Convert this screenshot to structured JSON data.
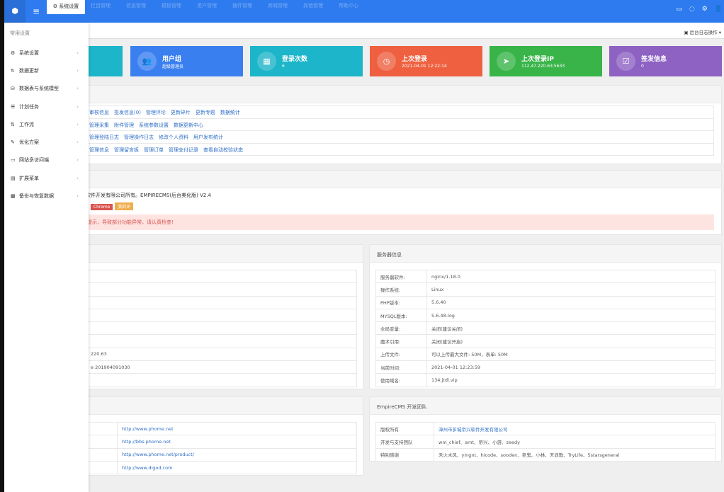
{
  "header": {
    "active_tab": "系统设置",
    "nav": [
      "栏目管理",
      "信息管理",
      "模板管理",
      "用户管理",
      "插件管理",
      "商城管理",
      "其他管理",
      "帮助中心"
    ],
    "right_icons": [
      "monitor-icon",
      "refresh-icon",
      "gear-icon",
      "user-icon"
    ],
    "log_link": "后台日志操作"
  },
  "sidebar": {
    "title": "常用设置",
    "items": [
      {
        "label": "系统设置",
        "icon": "gear"
      },
      {
        "label": "数据更新",
        "icon": "refresh"
      },
      {
        "label": "数据表与系统模型",
        "icon": "database"
      },
      {
        "label": "计划任务",
        "icon": "list"
      },
      {
        "label": "工作流",
        "icon": "sort"
      },
      {
        "label": "优化方案",
        "icon": "edit"
      },
      {
        "label": "网站多访问端",
        "icon": "laptop"
      },
      {
        "label": "扩展菜单",
        "icon": "menu"
      },
      {
        "label": "备份与恢复数据",
        "icon": "archive"
      }
    ]
  },
  "cards": [
    {
      "title": "用户组",
      "value": "超级管理员",
      "color": "#3a7ff0",
      "icon": "users"
    },
    {
      "title": "登录次数",
      "value": "6",
      "color": "#1cb5c9",
      "icon": "chart"
    },
    {
      "title": "上次登录",
      "value": "2021-04-01 12:22:14",
      "color": "#ee6040",
      "icon": "clock"
    },
    {
      "title": "上次登录IP",
      "value": "112.47.220.63:5633",
      "color": "#38b449",
      "icon": "location-arrow"
    },
    {
      "title": "签发信息",
      "value": "0",
      "color": "#8d62c2",
      "icon": "check-square"
    }
  ],
  "shortcuts": [
    [
      "审核信息",
      "签发信息(0)",
      "管理评论",
      "更新碎片",
      "更新专题",
      "数据统计"
    ],
    [
      "管理采集",
      "附件管理",
      "系统参数设置",
      "数据更新中心"
    ],
    [
      "管理登陆日志",
      "管理操作日志",
      "修改个人资料",
      "用户发布统计"
    ],
    [
      "管理信息",
      "管理留言板",
      "管理订单",
      "管理支付记录",
      "查看自动校验状态"
    ]
  ],
  "sysinfo": {
    "line": "软件开发有限公司所有。EMPIRECMS(后台美化版) V2.4",
    "badges": [
      {
        "text": "Chrome",
        "color": "#d9534f"
      },
      {
        "text": "我的IP",
        "color": "#f0ad4e"
      }
    ],
    "alert": "提示，导致部分功能异常，请认真检查!"
  },
  "left_table": [
    "",
    "",
    "",
    "",
    "",
    "",
    "220.63",
    "e 201904091030",
    ""
  ],
  "server": {
    "title": "服务器信息",
    "rows": [
      [
        "服务器软件:",
        "nginx/1.18.0"
      ],
      [
        "操作系统:",
        "Linux"
      ],
      [
        "PHP版本:",
        "5.6.40"
      ],
      [
        "MYSQL版本:",
        "5.6.48-log"
      ],
      [
        "全局变量:",
        "关闭(建议关闭)"
      ],
      [
        "魔术引用:",
        "关闭(建议开启)"
      ],
      [
        "上传文件:",
        "可以上传最大文件: 50M，表单: 50M"
      ],
      [
        "当前时间:",
        "2021-04-01 12:23:59"
      ],
      [
        "使用域名:",
        "134.jtdl.vip"
      ]
    ]
  },
  "links": [
    "http://www.phome.net",
    "http://bbs.phome.net",
    "http://www.phome.net/product/",
    "http://www.digod.com"
  ],
  "team": {
    "title": "EmpireCMS 开发团队",
    "rows": [
      [
        "版权所有",
        "漳州市芗城帝兴软件开发有限公司"
      ],
      [
        "开发与支持团队",
        "wm_chief、amt、帝兴、小游、zeedy"
      ],
      [
        "特别感谢",
        "禾火木风、yingnt、hicode、sooden、老鬼、小林、天浪歌、TryLife、5starsgeneral"
      ]
    ]
  }
}
